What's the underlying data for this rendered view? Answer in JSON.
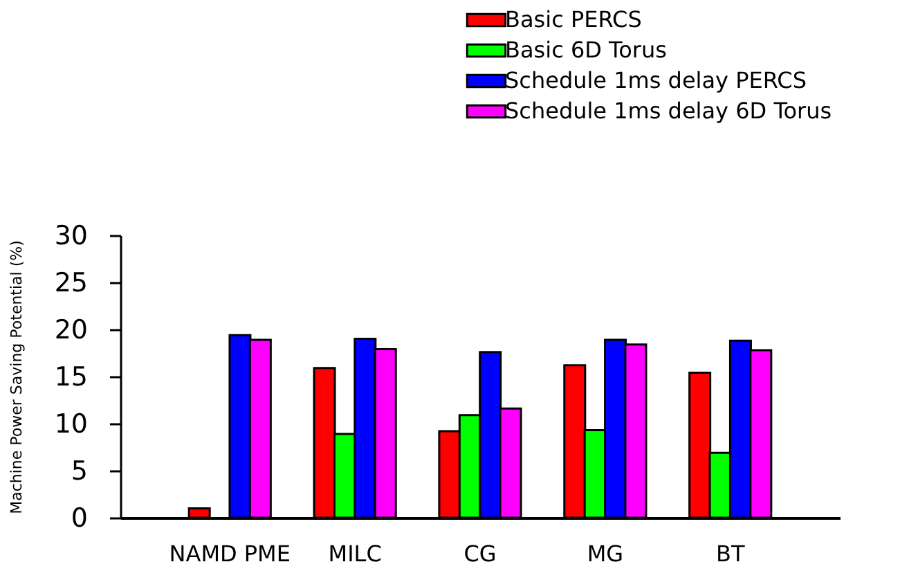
{
  "chart_data": {
    "type": "bar",
    "ylabel": "Machine Power Saving Potential (%)",
    "categories": [
      "NAMD PME",
      "MILC",
      "CG",
      "MG",
      "BT"
    ],
    "series": [
      {
        "name": "Basic PERCS",
        "color": "#ff0000",
        "values": [
          1.0,
          15.9,
          9.2,
          16.2,
          15.4
        ]
      },
      {
        "name": "Basic 6D Torus",
        "color": "#00ff00",
        "values": [
          null,
          8.9,
          10.9,
          9.3,
          6.9
        ]
      },
      {
        "name": "Schedule 1ms delay PERCS",
        "color": "#0000ff",
        "values": [
          19.4,
          19.0,
          17.6,
          18.9,
          18.8
        ]
      },
      {
        "name": "Schedule 1ms delay 6D Torus",
        "color": "#ff00ff",
        "values": [
          18.9,
          17.9,
          11.6,
          18.4,
          17.8
        ]
      }
    ],
    "ylim": [
      0,
      30
    ],
    "yticks": [
      0,
      5,
      10,
      15,
      20,
      25,
      30
    ],
    "grid": false,
    "legend": "top right"
  }
}
